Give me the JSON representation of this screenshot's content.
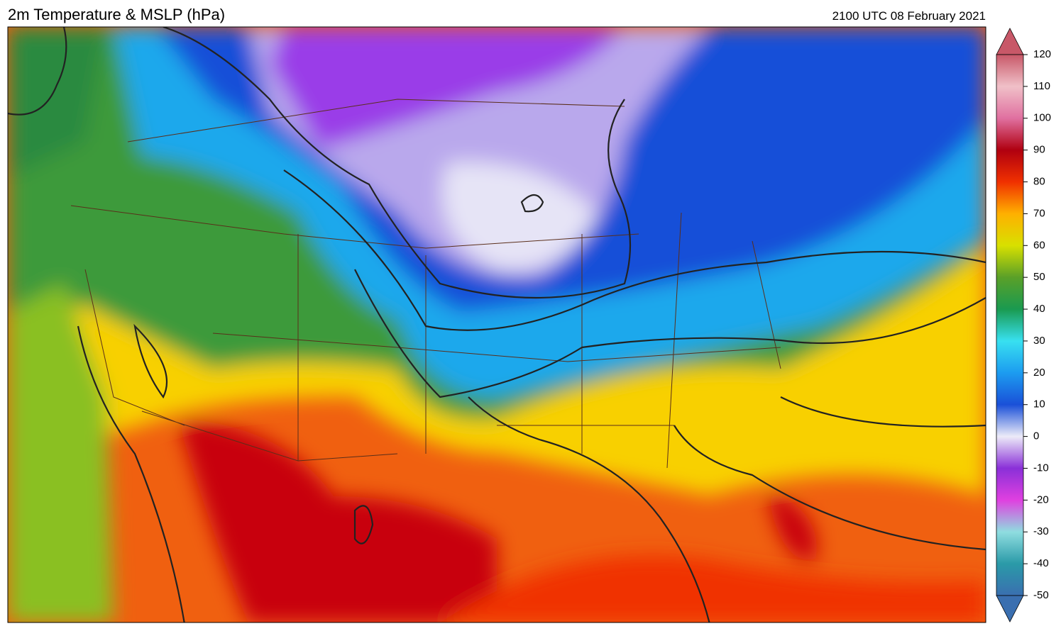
{
  "header": {
    "title": "2m Temperature & MSLP (hPa)",
    "timestamp": "2100 UTC 08 February 2021"
  },
  "colorbar": {
    "range": [
      -50,
      120
    ],
    "ticks": [
      -50,
      -40,
      -30,
      -20,
      -10,
      0,
      10,
      20,
      30,
      40,
      50,
      60,
      70,
      80,
      90,
      100,
      110,
      120
    ]
  }
}
